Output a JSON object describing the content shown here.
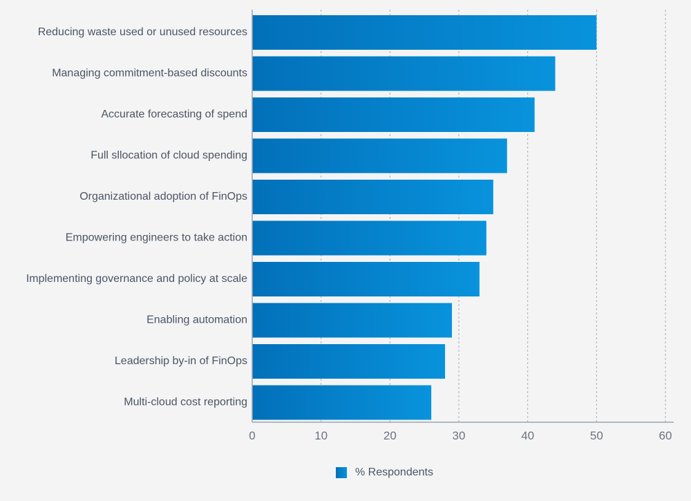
{
  "chart_data": {
    "type": "bar",
    "orientation": "horizontal",
    "categories": [
      "Reducing waste used or unused resources",
      "Managing commitment-based discounts",
      "Accurate forecasting of spend",
      "Full sllocation of cloud spending",
      "Organizational adoption of FinOps",
      "Empowering engineers to take action",
      "Implementing governance and policy at scale",
      "Enabling automation",
      "Leadership by-in of FinOps",
      "Multi-cloud cost reporting"
    ],
    "series": [
      {
        "name": "% Respondents",
        "values": [
          50,
          44,
          41,
          37,
          35,
          34,
          33,
          29,
          28,
          26
        ],
        "color_start": "#0270b9",
        "color_end": "#0893dc"
      }
    ],
    "xticks": [
      0,
      10,
      20,
      30,
      40,
      50,
      60
    ],
    "xlim": [
      0,
      60
    ],
    "grid": "vertical dashed",
    "legend_position": "bottom-center"
  }
}
